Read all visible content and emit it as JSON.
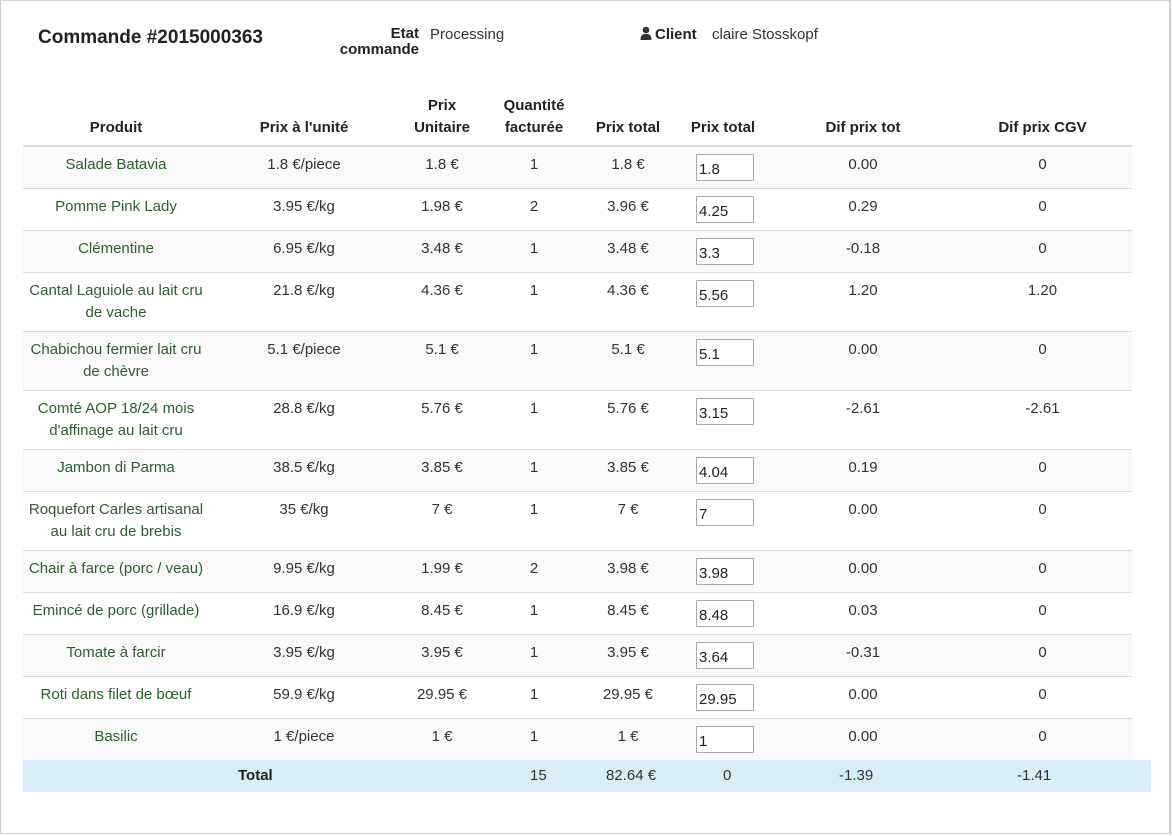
{
  "header": {
    "order_title": "Commande #2015000363",
    "state_label": "Etat commande",
    "state_value": "Processing",
    "client_label": "Client",
    "client_value": "claire Stosskopf",
    "client_icon": "user-icon"
  },
  "table": {
    "columns": [
      "Produit",
      "Prix à l'unité",
      "Prix Unitaire",
      "Quantité facturée",
      "Prix total",
      "Prix total",
      "Dif prix tot",
      "Dif prix CGV"
    ],
    "rows": [
      {
        "produit": "Salade Batavia",
        "prix_unite": "1.8 €/piece",
        "prix_unitaire": "1.8 €",
        "quantite": "1",
        "prix_total": "1.8 €",
        "prix_total_input": "1.8",
        "dif_prix_tot": "0.00",
        "dif_prix_cgv": "0"
      },
      {
        "produit": "Pomme Pink Lady",
        "prix_unite": "3.95 €/kg",
        "prix_unitaire": "1.98 €",
        "quantite": "2",
        "prix_total": "3.96 €",
        "prix_total_input": "4.25",
        "dif_prix_tot": "0.29",
        "dif_prix_cgv": "0"
      },
      {
        "produit": "Clémentine",
        "prix_unite": "6.95 €/kg",
        "prix_unitaire": "3.48 €",
        "quantite": "1",
        "prix_total": "3.48 €",
        "prix_total_input": "3.3",
        "dif_prix_tot": "-0.18",
        "dif_prix_cgv": "0"
      },
      {
        "produit": "Cantal Laguiole au lait cru de vache",
        "prix_unite": "21.8 €/kg",
        "prix_unitaire": "4.36 €",
        "quantite": "1",
        "prix_total": "4.36 €",
        "prix_total_input": "5.56",
        "dif_prix_tot": "1.20",
        "dif_prix_cgv": "1.20"
      },
      {
        "produit": "Chabichou fermier lait cru de chèvre",
        "prix_unite": "5.1 €/piece",
        "prix_unitaire": "5.1 €",
        "quantite": "1",
        "prix_total": "5.1 €",
        "prix_total_input": "5.1",
        "dif_prix_tot": "0.00",
        "dif_prix_cgv": "0"
      },
      {
        "produit": "Comté AOP 18/24 mois d'affinage au lait cru",
        "prix_unite": "28.8 €/kg",
        "prix_unitaire": "5.76 €",
        "quantite": "1",
        "prix_total": "5.76 €",
        "prix_total_input": "3.15",
        "dif_prix_tot": "-2.61",
        "dif_prix_cgv": "-2.61"
      },
      {
        "produit": "Jambon di Parma",
        "prix_unite": "38.5 €/kg",
        "prix_unitaire": "3.85 €",
        "quantite": "1",
        "prix_total": "3.85 €",
        "prix_total_input": "4.04",
        "dif_prix_tot": "0.19",
        "dif_prix_cgv": "0"
      },
      {
        "produit": "Roquefort Carles artisanal au lait cru de brebis",
        "prix_unite": "35 €/kg",
        "prix_unitaire": "7 €",
        "quantite": "1",
        "prix_total": "7 €",
        "prix_total_input": "7",
        "dif_prix_tot": "0.00",
        "dif_prix_cgv": "0"
      },
      {
        "produit": "Chair à farce (porc / veau)",
        "prix_unite": "9.95 €/kg",
        "prix_unitaire": "1.99 €",
        "quantite": "2",
        "prix_total": "3.98 €",
        "prix_total_input": "3.98",
        "dif_prix_tot": "0.00",
        "dif_prix_cgv": "0"
      },
      {
        "produit": "Emincé de porc (grillade)",
        "prix_unite": "16.9 €/kg",
        "prix_unitaire": "8.45 €",
        "quantite": "1",
        "prix_total": "8.45 €",
        "prix_total_input": "8.48",
        "dif_prix_tot": "0.03",
        "dif_prix_cgv": "0"
      },
      {
        "produit": "Tomate à farcir",
        "prix_unite": "3.95 €/kg",
        "prix_unitaire": "3.95 €",
        "quantite": "1",
        "prix_total": "3.95 €",
        "prix_total_input": "3.64",
        "dif_prix_tot": "-0.31",
        "dif_prix_cgv": "0"
      },
      {
        "produit": "Roti dans filet de bœuf",
        "prix_unite": "59.9 €/kg",
        "prix_unitaire": "29.95 €",
        "quantite": "1",
        "prix_total": "29.95 €",
        "prix_total_input": "29.95",
        "dif_prix_tot": "0.00",
        "dif_prix_cgv": "0"
      },
      {
        "produit": "Basilic",
        "prix_unite": "1 €/piece",
        "prix_unitaire": "1 €",
        "quantite": "1",
        "prix_total": "1 €",
        "prix_total_input": "1",
        "dif_prix_tot": "0.00",
        "dif_prix_cgv": "0"
      }
    ]
  },
  "totals": {
    "label": "Total",
    "quantite": "15",
    "prix_total": "82.64 €",
    "prix_total_input": "0",
    "dif_prix_tot": "-1.39",
    "dif_prix_cgv": "-1.41",
    "row_color": "#d9edf7"
  },
  "colors": {
    "product_text": "#2d5f2d",
    "stripe": "#f9f9f9"
  }
}
